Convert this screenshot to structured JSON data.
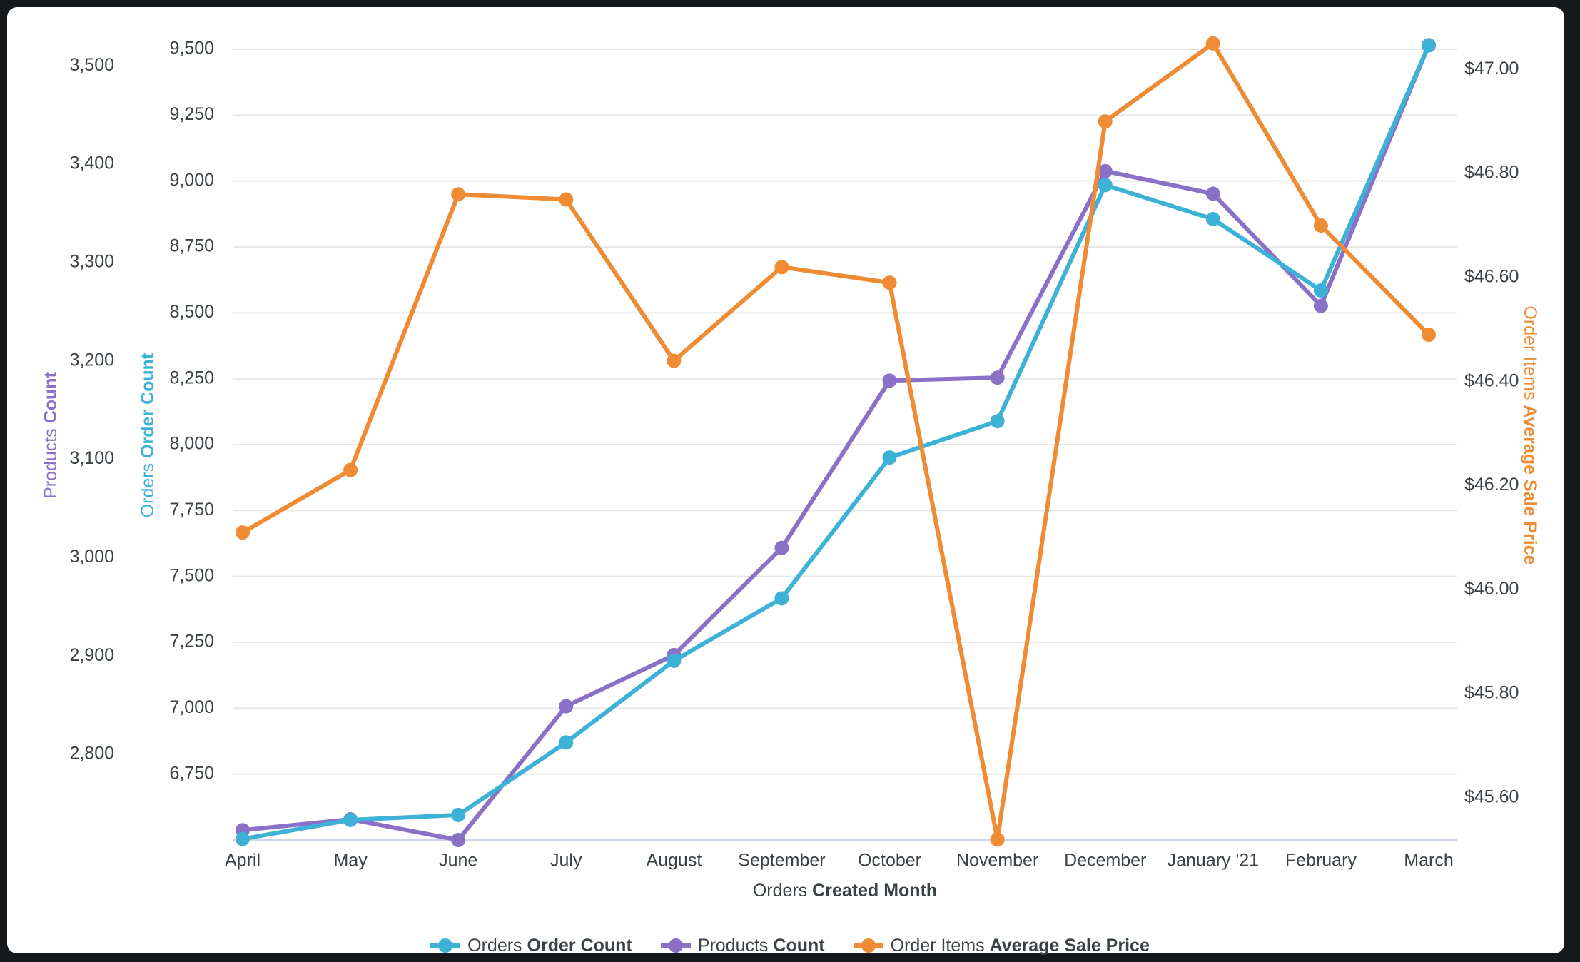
{
  "frame": {
    "background": "#15191b",
    "card_background": "#ffffff"
  },
  "chart_data": {
    "type": "line",
    "categories": [
      "April",
      "May",
      "June",
      "July",
      "August",
      "September",
      "October",
      "November",
      "December",
      "January '21",
      "February",
      "March"
    ],
    "series": [
      {
        "id": "orders",
        "name_view": "Orders",
        "name_field": "Order Count",
        "color": "#3EB1D6",
        "axis": "orders",
        "values": [
          6504,
          6576,
          6595,
          6870,
          7180,
          7417,
          7951,
          8089,
          8985,
          8856,
          8585,
          9515
        ]
      },
      {
        "id": "products",
        "name_view": "Products",
        "name_field": "Count",
        "color": "#8A71C7",
        "axis": "products",
        "values": [
          2723,
          2734,
          2713,
          2849,
          2901,
          3010,
          3180,
          3183,
          3393,
          3370,
          3256,
          3521
        ]
      },
      {
        "id": "price",
        "name_view": "Order Items",
        "name_field": "Average Sale Price",
        "color": "#EE8B33",
        "axis": "price",
        "values": [
          46.11,
          46.23,
          46.76,
          46.75,
          46.44,
          46.62,
          46.59,
          45.52,
          46.9,
          47.05,
          46.7,
          46.49
        ]
      }
    ],
    "x_axis": {
      "title_view": "Orders",
      "title_field": "Created Month"
    },
    "axes": {
      "products": {
        "title_view": "Products",
        "title_field": "Count",
        "color": "#8A71C7",
        "min": 2713,
        "max": 3535,
        "ticks": [
          {
            "value": 3500,
            "label": "3,500"
          },
          {
            "value": 3400,
            "label": "3,400"
          },
          {
            "value": 3300,
            "label": "3,300"
          },
          {
            "value": 3200,
            "label": "3,200"
          },
          {
            "value": 3100,
            "label": "3,100"
          },
          {
            "value": 3000,
            "label": "3,000"
          },
          {
            "value": 2900,
            "label": "2,900"
          },
          {
            "value": 2800,
            "label": "2,800"
          }
        ]
      },
      "orders": {
        "title_view": "Orders",
        "title_field": "Order Count",
        "color": "#3EB1D6",
        "min": 6500,
        "max": 9568,
        "ticks": [
          {
            "value": 9500,
            "label": "9,500"
          },
          {
            "value": 9250,
            "label": "9,250"
          },
          {
            "value": 9000,
            "label": "9,000"
          },
          {
            "value": 8750,
            "label": "8,750"
          },
          {
            "value": 8500,
            "label": "8,500"
          },
          {
            "value": 8250,
            "label": "8,250"
          },
          {
            "value": 8000,
            "label": "8,000"
          },
          {
            "value": 7750,
            "label": "7,750"
          },
          {
            "value": 7500,
            "label": "7,500"
          },
          {
            "value": 7250,
            "label": "7,250"
          },
          {
            "value": 7000,
            "label": "7,000"
          },
          {
            "value": 6750,
            "label": "6,750"
          }
        ]
      },
      "price": {
        "title_view": "Order Items",
        "title_field": "Average Sale Price",
        "color": "#EE8B33",
        "min": 45.519,
        "max": 47.073,
        "ticks": [
          {
            "value": 47.0,
            "label": "$47.00"
          },
          {
            "value": 46.8,
            "label": "$46.80"
          },
          {
            "value": 46.6,
            "label": "$46.60"
          },
          {
            "value": 46.4,
            "label": "$46.40"
          },
          {
            "value": 46.2,
            "label": "$46.20"
          },
          {
            "value": 46.0,
            "label": "$46.00"
          },
          {
            "value": 45.8,
            "label": "$45.80"
          },
          {
            "value": 45.6,
            "label": "$45.60"
          }
        ]
      }
    },
    "style": {
      "gridline_color": "#E6E6E6",
      "baseline_color": "#CCD6EB",
      "text_color": "#3A4245"
    },
    "legend_position": "bottom"
  }
}
